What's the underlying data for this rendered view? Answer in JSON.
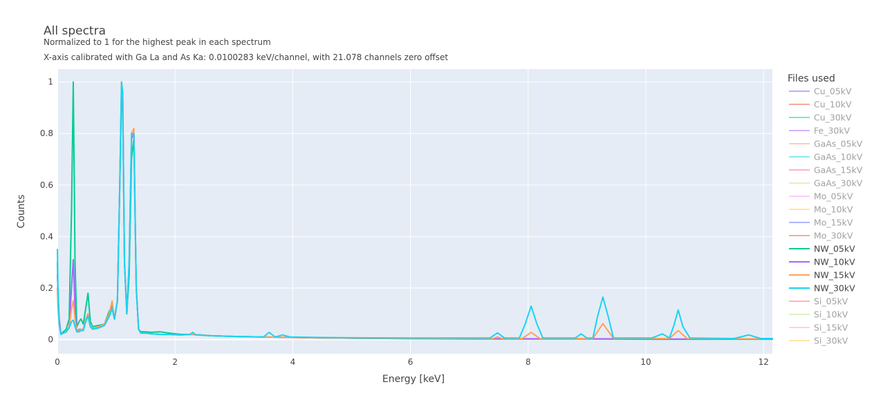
{
  "chart_data": {
    "type": "line",
    "title": "All spectra",
    "subtitle_lines": [
      "Normalized to 1 for the highest peak in each spectrum",
      "X-axis calibrated with Ga La and As Ka: 0.0100283 keV/channel, with 21.078 channels zero offset"
    ],
    "xlabel": "Energy [keV]",
    "ylabel": "Counts",
    "xlim": [
      0,
      12.15
    ],
    "ylim": [
      -0.055,
      1.05
    ],
    "x_ticks": [
      0,
      2,
      4,
      6,
      8,
      10,
      12
    ],
    "x_tick_labels": [
      "0",
      "2",
      "4",
      "6",
      "8",
      "10",
      "12"
    ],
    "y_ticks": [
      0,
      0.2,
      0.4,
      0.6,
      0.8,
      1
    ],
    "y_tick_labels": [
      "0",
      "0.2",
      "0.4",
      "0.6",
      "0.8",
      "1"
    ],
    "grid": true,
    "legend_title": "Files used",
    "legend_position": "right",
    "series": [
      {
        "name": "Cu_05kV",
        "color": "#636efa",
        "visible": false,
        "x": [],
        "y": []
      },
      {
        "name": "Cu_10kV",
        "color": "#EF553B",
        "visible": false,
        "x": [],
        "y": []
      },
      {
        "name": "Cu_30kV",
        "color": "#00cc96",
        "visible": false,
        "x": [],
        "y": []
      },
      {
        "name": "Fe_30kV",
        "color": "#ab63fa",
        "visible": false,
        "x": [],
        "y": []
      },
      {
        "name": "GaAs_05kV",
        "color": "#FFA15A",
        "visible": false,
        "x": [],
        "y": []
      },
      {
        "name": "GaAs_10kV",
        "color": "#19d3f3",
        "visible": false,
        "x": [],
        "y": []
      },
      {
        "name": "GaAs_15kV",
        "color": "#FF6692",
        "visible": false,
        "x": [],
        "y": []
      },
      {
        "name": "GaAs_30kV",
        "color": "#B6E880",
        "visible": false,
        "x": [],
        "y": []
      },
      {
        "name": "Mo_05kV",
        "color": "#FF97FF",
        "visible": false,
        "x": [],
        "y": []
      },
      {
        "name": "Mo_10kV",
        "color": "#FECB52",
        "visible": false,
        "x": [],
        "y": []
      },
      {
        "name": "Mo_15kV",
        "color": "#636efa",
        "visible": false,
        "x": [],
        "y": []
      },
      {
        "name": "Mo_30kV",
        "color": "#EF553B",
        "visible": false,
        "x": [],
        "y": []
      },
      {
        "name": "NW_05kV",
        "color": "#00cc96",
        "visible": true,
        "x": [
          0,
          0.01,
          0.03,
          0.06,
          0.1,
          0.15,
          0.2,
          0.24,
          0.27,
          0.3,
          0.33,
          0.37,
          0.4,
          0.44,
          0.48,
          0.52,
          0.56,
          0.6,
          0.7,
          0.8,
          0.88,
          0.93,
          0.97,
          1.02,
          1.06,
          1.09,
          1.11,
          1.14,
          1.18,
          1.22,
          1.26,
          1.3,
          1.34,
          1.38,
          1.42,
          1.5,
          1.6,
          1.75,
          1.9,
          2.1,
          2.3,
          2.6,
          3.0,
          3.5,
          4.0,
          4.5,
          5.0,
          6.0,
          7.0,
          8.0,
          9.0,
          10.0,
          11.0,
          12.15
        ],
        "y": [
          0.3,
          0.15,
          0.08,
          0.02,
          0.03,
          0.04,
          0.08,
          0.5,
          1.0,
          0.3,
          0.05,
          0.07,
          0.08,
          0.06,
          0.12,
          0.18,
          0.07,
          0.05,
          0.055,
          0.06,
          0.11,
          0.13,
          0.08,
          0.15,
          0.6,
          0.95,
          0.9,
          0.3,
          0.1,
          0.25,
          0.7,
          0.78,
          0.2,
          0.04,
          0.03,
          0.03,
          0.028,
          0.03,
          0.025,
          0.02,
          0.02,
          0.015,
          0.012,
          0.01,
          0.008,
          0.006,
          0.005,
          0.003,
          0.002,
          0.002,
          0.002,
          0.001,
          0.001,
          0.001
        ]
      },
      {
        "name": "NW_10kV",
        "color": "#ab63fa",
        "visible": true,
        "x": [
          0,
          0.01,
          0.03,
          0.06,
          0.1,
          0.15,
          0.2,
          0.24,
          0.27,
          0.3,
          0.33,
          0.37,
          0.4,
          0.44,
          0.48,
          0.52,
          0.56,
          0.6,
          0.7,
          0.8,
          0.88,
          0.93,
          0.97,
          1.02,
          1.06,
          1.09,
          1.11,
          1.14,
          1.18,
          1.22,
          1.26,
          1.3,
          1.34,
          1.38,
          1.42,
          1.5,
          1.6,
          1.75,
          1.9,
          2.1,
          2.3,
          2.6,
          3.0,
          3.5,
          4.0,
          4.5,
          5.0,
          6.0,
          7.0,
          8.0,
          9.0,
          10.0,
          11.0,
          12.15
        ],
        "y": [
          0.25,
          0.2,
          0.08,
          0.02,
          0.025,
          0.03,
          0.05,
          0.2,
          0.31,
          0.12,
          0.03,
          0.04,
          0.04,
          0.035,
          0.07,
          0.1,
          0.05,
          0.04,
          0.045,
          0.055,
          0.09,
          0.12,
          0.08,
          0.15,
          0.6,
          0.98,
          0.95,
          0.3,
          0.1,
          0.3,
          0.78,
          0.8,
          0.2,
          0.04,
          0.025,
          0.025,
          0.022,
          0.02,
          0.02,
          0.018,
          0.02,
          0.015,
          0.012,
          0.01,
          0.008,
          0.006,
          0.005,
          0.004,
          0.003,
          0.003,
          0.003,
          0.002,
          0.002,
          0.002
        ]
      },
      {
        "name": "NW_15kV",
        "color": "#FFA15A",
        "visible": true,
        "x": [
          0,
          0.01,
          0.03,
          0.06,
          0.1,
          0.15,
          0.2,
          0.24,
          0.27,
          0.3,
          0.33,
          0.37,
          0.4,
          0.44,
          0.48,
          0.52,
          0.56,
          0.6,
          0.7,
          0.8,
          0.88,
          0.93,
          0.97,
          1.02,
          1.06,
          1.09,
          1.11,
          1.14,
          1.18,
          1.22,
          1.26,
          1.3,
          1.34,
          1.38,
          1.42,
          1.5,
          1.6,
          1.75,
          1.9,
          2.1,
          2.3,
          2.6,
          3.0,
          3.5,
          4.0,
          4.5,
          5.0,
          6.0,
          7.0,
          7.4,
          7.48,
          7.56,
          7.9,
          8.05,
          8.2,
          8.8,
          9.1,
          9.27,
          9.45,
          10.3,
          10.4,
          10.55,
          10.7,
          11.5,
          11.75,
          12.15
        ],
        "y": [
          0.2,
          0.12,
          0.06,
          0.02,
          0.025,
          0.03,
          0.05,
          0.12,
          0.15,
          0.08,
          0.03,
          0.035,
          0.04,
          0.04,
          0.08,
          0.1,
          0.05,
          0.045,
          0.05,
          0.06,
          0.1,
          0.15,
          0.08,
          0.15,
          0.6,
          1.0,
          0.96,
          0.3,
          0.1,
          0.3,
          0.8,
          0.82,
          0.2,
          0.04,
          0.025,
          0.025,
          0.022,
          0.02,
          0.02,
          0.018,
          0.02,
          0.015,
          0.012,
          0.01,
          0.008,
          0.006,
          0.005,
          0.004,
          0.004,
          0.004,
          0.01,
          0.004,
          0.004,
          0.028,
          0.004,
          0.004,
          0.004,
          0.062,
          0.004,
          0.004,
          0.004,
          0.035,
          0.004,
          0.003,
          0.003,
          0.003
        ]
      },
      {
        "name": "NW_30kV",
        "color": "#19d3f3",
        "visible": true,
        "x": [
          0,
          0.01,
          0.03,
          0.06,
          0.1,
          0.15,
          0.2,
          0.24,
          0.27,
          0.3,
          0.33,
          0.37,
          0.4,
          0.44,
          0.48,
          0.52,
          0.56,
          0.6,
          0.7,
          0.8,
          0.88,
          0.93,
          0.97,
          1.02,
          1.06,
          1.09,
          1.11,
          1.14,
          1.18,
          1.22,
          1.26,
          1.3,
          1.34,
          1.38,
          1.42,
          1.5,
          1.6,
          1.75,
          1.9,
          2.1,
          2.25,
          2.3,
          2.35,
          2.6,
          3.0,
          3.5,
          3.6,
          3.7,
          3.83,
          3.95,
          4.5,
          5.0,
          6.0,
          7.0,
          7.35,
          7.48,
          7.6,
          7.85,
          7.95,
          8.05,
          8.15,
          8.25,
          8.6,
          8.8,
          8.9,
          9.0,
          9.1,
          9.18,
          9.27,
          9.36,
          9.45,
          10.1,
          10.28,
          10.4,
          10.47,
          10.55,
          10.63,
          10.75,
          11.5,
          11.75,
          11.95,
          12.15
        ],
        "y": [
          0.35,
          0.2,
          0.06,
          0.02,
          0.025,
          0.03,
          0.045,
          0.07,
          0.075,
          0.05,
          0.03,
          0.03,
          0.035,
          0.035,
          0.07,
          0.09,
          0.05,
          0.04,
          0.045,
          0.055,
          0.09,
          0.12,
          0.08,
          0.15,
          0.6,
          1.0,
          0.96,
          0.3,
          0.1,
          0.3,
          0.8,
          0.8,
          0.2,
          0.04,
          0.025,
          0.025,
          0.022,
          0.02,
          0.02,
          0.018,
          0.02,
          0.028,
          0.018,
          0.015,
          0.012,
          0.01,
          0.028,
          0.01,
          0.018,
          0.01,
          0.008,
          0.007,
          0.006,
          0.006,
          0.006,
          0.026,
          0.006,
          0.006,
          0.06,
          0.13,
          0.06,
          0.006,
          0.006,
          0.006,
          0.022,
          0.006,
          0.006,
          0.09,
          0.165,
          0.09,
          0.006,
          0.006,
          0.022,
          0.006,
          0.05,
          0.115,
          0.05,
          0.006,
          0.004,
          0.018,
          0.004,
          0.004
        ]
      },
      {
        "name": "Si_05kV",
        "color": "#FF6692",
        "visible": false,
        "x": [],
        "y": []
      },
      {
        "name": "Si_10kV",
        "color": "#B6E880",
        "visible": false,
        "x": [],
        "y": []
      },
      {
        "name": "Si_15kV",
        "color": "#FF97FF",
        "visible": false,
        "x": [],
        "y": []
      },
      {
        "name": "Si_30kV",
        "color": "#FECB52",
        "visible": false,
        "x": [],
        "y": []
      }
    ]
  }
}
